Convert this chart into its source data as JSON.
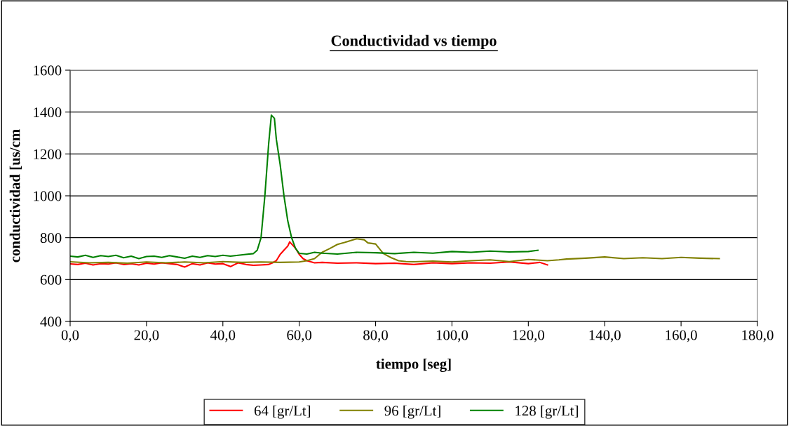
{
  "chart_data": {
    "type": "line",
    "title": "Conductividad vs tiempo",
    "xlabel": "tiempo [seg]",
    "ylabel": "conductividad [us/cm",
    "xlim": [
      0,
      180
    ],
    "ylim": [
      400,
      1600
    ],
    "xticks": [
      {
        "value": 0,
        "label": "0,0"
      },
      {
        "value": 20,
        "label": "20,0"
      },
      {
        "value": 40,
        "label": "40,0"
      },
      {
        "value": 60,
        "label": "60,0"
      },
      {
        "value": 80,
        "label": "80,0"
      },
      {
        "value": 100,
        "label": "100,0"
      },
      {
        "value": 120,
        "label": "120,0"
      },
      {
        "value": 140,
        "label": "140,0"
      },
      {
        "value": 160,
        "label": "160,0"
      },
      {
        "value": 180,
        "label": "180,0"
      }
    ],
    "yticks": [
      400,
      600,
      800,
      1000,
      1200,
      1400,
      1600
    ],
    "grid": "y",
    "legend": "bottom",
    "marker": "none",
    "line_style": "solid",
    "series": [
      {
        "name": "64 [gr/Lt]",
        "color": "#ff0000",
        "x": [
          0,
          2,
          4,
          6,
          8,
          10,
          12,
          14,
          16,
          18,
          20,
          22,
          24,
          26,
          28,
          30,
          32,
          34,
          36,
          38,
          40,
          42,
          44,
          46,
          48,
          50,
          52,
          53,
          54,
          55,
          56,
          57,
          57.5,
          58,
          59,
          60,
          61,
          62,
          64,
          66,
          70,
          75,
          80,
          85,
          90,
          95,
          100,
          105,
          110,
          115,
          120,
          123,
          125
        ],
        "values": [
          675,
          672,
          678,
          670,
          676,
          674,
          680,
          672,
          676,
          670,
          678,
          674,
          680,
          676,
          672,
          660,
          676,
          670,
          680,
          674,
          676,
          662,
          680,
          672,
          668,
          670,
          672,
          680,
          690,
          720,
          740,
          760,
          780,
          770,
          750,
          720,
          700,
          690,
          680,
          682,
          678,
          680,
          676,
          678,
          672,
          680,
          676,
          680,
          678,
          684,
          676,
          682,
          670
        ]
      },
      {
        "name": "96 [gr/Lt]",
        "color": "#808000",
        "x": [
          0,
          5,
          10,
          15,
          20,
          25,
          30,
          35,
          40,
          45,
          50,
          55,
          60,
          62,
          64,
          66,
          68,
          70,
          72,
          75,
          77,
          78,
          80,
          82,
          84,
          86,
          88,
          90,
          95,
          100,
          105,
          110,
          115,
          120,
          125,
          128,
          130,
          135,
          140,
          145,
          150,
          155,
          160,
          165,
          170
        ],
        "values": [
          685,
          680,
          682,
          678,
          684,
          680,
          684,
          680,
          686,
          682,
          684,
          682,
          684,
          690,
          700,
          730,
          748,
          768,
          778,
          795,
          790,
          775,
          770,
          725,
          705,
          690,
          686,
          685,
          688,
          684,
          690,
          694,
          686,
          696,
          690,
          694,
          698,
          702,
          708,
          700,
          704,
          700,
          706,
          702,
          700
        ]
      },
      {
        "name": "128 [gr/Lt]",
        "color": "#008000",
        "x": [
          0,
          2,
          4,
          6,
          8,
          10,
          12,
          14,
          16,
          18,
          20,
          22,
          24,
          26,
          28,
          30,
          32,
          34,
          36,
          38,
          40,
          42,
          44,
          46,
          48,
          49,
          50,
          51,
          52,
          52.7,
          53.5,
          54,
          55,
          56,
          57,
          58,
          59,
          60,
          62,
          64,
          66,
          70,
          75,
          80,
          85,
          90,
          95,
          100,
          105,
          110,
          115,
          120,
          122.5
        ],
        "values": [
          712,
          708,
          716,
          706,
          714,
          710,
          716,
          704,
          712,
          700,
          710,
          712,
          706,
          714,
          708,
          702,
          712,
          706,
          714,
          710,
          716,
          712,
          716,
          720,
          724,
          740,
          800,
          1000,
          1250,
          1385,
          1370,
          1270,
          1150,
          1000,
          880,
          800,
          750,
          725,
          722,
          730,
          726,
          722,
          730,
          728,
          724,
          730,
          726,
          734,
          730,
          736,
          732,
          734,
          740
        ]
      }
    ]
  }
}
